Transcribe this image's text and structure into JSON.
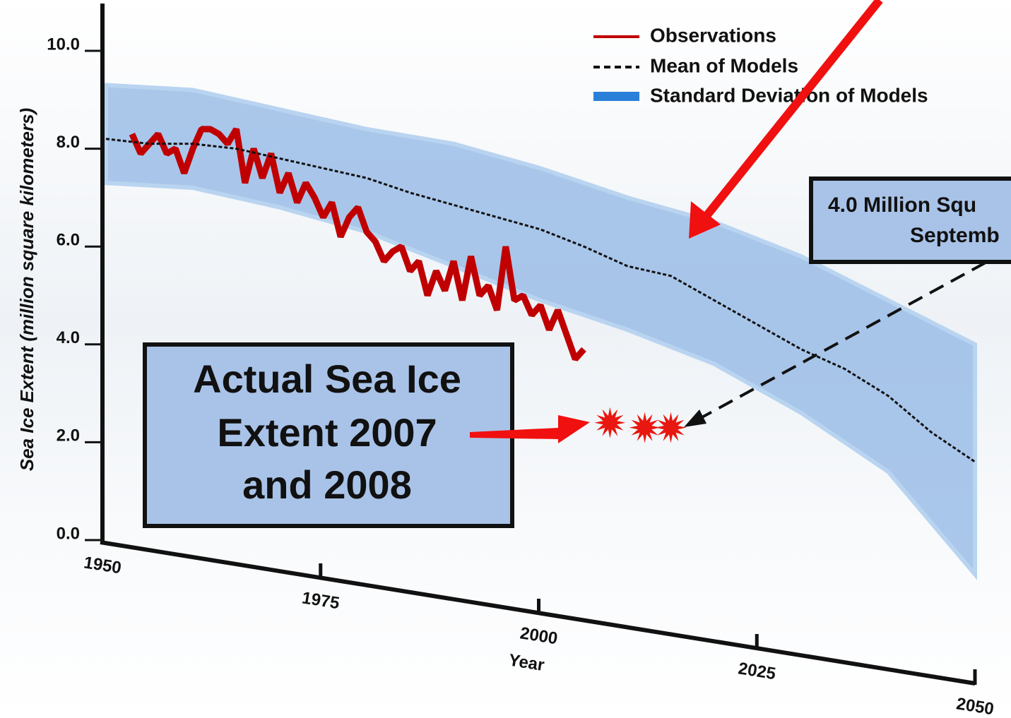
{
  "chart_data": {
    "type": "line",
    "ylabel": "Sea Ice Extent (million square kilometers)",
    "xlabel": "Year",
    "ylim": [
      0,
      11
    ],
    "yticks": [
      {
        "value": 0,
        "label": "0.0"
      },
      {
        "value": 2,
        "label": "2.0"
      },
      {
        "value": 4,
        "label": "4.0"
      },
      {
        "value": 6,
        "label": "6.0"
      },
      {
        "value": 8,
        "label": "8.0"
      },
      {
        "value": 10,
        "label": "10.0"
      }
    ],
    "xlim": [
      1950,
      2050
    ],
    "xticks": [
      1950,
      1975,
      2000,
      2025,
      2050
    ],
    "series": [
      {
        "name": "Observations",
        "color": "#c00000",
        "x": [
          1953,
          1954,
          1955,
          1956,
          1957,
          1958,
          1959,
          1960,
          1961,
          1962,
          1963,
          1964,
          1965,
          1966,
          1967,
          1968,
          1969,
          1970,
          1971,
          1972,
          1973,
          1974,
          1975,
          1976,
          1977,
          1978,
          1979,
          1980,
          1981,
          1982,
          1983,
          1984,
          1985,
          1986,
          1987,
          1988,
          1989,
          1990,
          1991,
          1992,
          1993,
          1994,
          1995,
          1996,
          1997,
          1998,
          1999,
          2000,
          2001,
          2002,
          2003,
          2004,
          2005
        ],
        "values": [
          8.3,
          7.9,
          8.1,
          8.3,
          7.9,
          8.0,
          7.5,
          8.0,
          8.4,
          8.4,
          8.3,
          8.1,
          8.4,
          7.3,
          8.0,
          7.4,
          7.9,
          7.1,
          7.5,
          6.9,
          7.3,
          7.0,
          6.6,
          6.9,
          6.2,
          6.6,
          6.8,
          6.3,
          6.1,
          5.7,
          5.9,
          6.0,
          5.5,
          5.7,
          5.0,
          5.5,
          5.1,
          5.7,
          4.9,
          5.8,
          5.0,
          5.2,
          4.7,
          6.0,
          4.9,
          5.0,
          4.6,
          4.8,
          4.3,
          4.7,
          4.2,
          3.7,
          3.9
        ]
      },
      {
        "name": "Mean of Models",
        "color": "#111111",
        "x": [
          1950,
          1955,
          1960,
          1965,
          1970,
          1975,
          1980,
          1985,
          1990,
          1995,
          2000,
          2005,
          2010,
          2015,
          2020,
          2025,
          2030,
          2035,
          2040,
          2045,
          2050
        ],
        "values": [
          8.2,
          8.1,
          8.1,
          8.0,
          7.8,
          7.6,
          7.4,
          7.1,
          6.85,
          6.6,
          6.35,
          6.0,
          5.6,
          5.4,
          4.9,
          4.4,
          3.9,
          3.5,
          2.95,
          2.2,
          1.6
        ]
      }
    ],
    "band": {
      "name": "Standard Deviation of Models",
      "color": "#8fb6e4",
      "x": [
        1950,
        1960,
        1970,
        1980,
        1990,
        2000,
        2010,
        2020,
        2030,
        2040,
        2050
      ],
      "upper": [
        9.3,
        9.2,
        8.8,
        8.4,
        8.1,
        7.6,
        7.0,
        6.5,
        5.8,
        4.9,
        4.0
      ],
      "lower": [
        7.3,
        7.2,
        6.8,
        6.3,
        5.6,
        4.9,
        4.3,
        3.6,
        2.6,
        1.4,
        -0.7
      ]
    },
    "points": {
      "color": "#e8170f",
      "x": [
        2008,
        2012,
        2015
      ],
      "values": [
        2.4,
        2.3,
        2.3
      ]
    },
    "annotations": [
      {
        "lines": [
          "Actual Sea Ice",
          "Extent 2007",
          "and 2008"
        ]
      },
      {
        "lines": [
          "4.0 Million Squ",
          "Septemb"
        ]
      }
    ]
  }
}
